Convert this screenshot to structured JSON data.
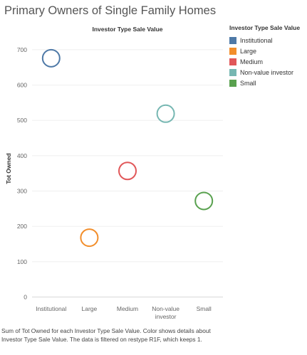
{
  "page_title": "Primary Owners of Single Family Homes",
  "caption": "Sum of Tot Owned for each Investor Type Sale Value.  Color shows details about Investor Type Sale Value. The data is filtered on restype R1F, which keeps 1.",
  "legend": {
    "title": "Investor Type Sale Value",
    "items": [
      {
        "label": "Institutional",
        "color": "#4e79a7"
      },
      {
        "label": "Large",
        "color": "#f28e2b"
      },
      {
        "label": "Medium",
        "color": "#e15759"
      },
      {
        "label": "Non-value investor",
        "color": "#76b7b2"
      },
      {
        "label": "Small",
        "color": "#59a14f"
      }
    ]
  },
  "chart_data": {
    "type": "scatter",
    "title": "Investor Type Sale Value",
    "xlabel": "",
    "ylabel": "Tot Owned",
    "categories": [
      "Institutional",
      "Large",
      "Medium",
      "Non-value investor",
      "Small"
    ],
    "category_tick_labels": [
      [
        "Institutional"
      ],
      [
        "Large"
      ],
      [
        "Medium"
      ],
      [
        "Non-value",
        "investor"
      ],
      [
        "Small"
      ]
    ],
    "values": [
      676,
      168,
      357,
      519,
      272
    ],
    "colors": [
      "#4e79a7",
      "#f28e2b",
      "#e15759",
      "#76b7b2",
      "#59a14f"
    ],
    "ylim": [
      -15,
      730
    ],
    "yticks": [
      0,
      100,
      200,
      300,
      400,
      500,
      600,
      700
    ],
    "grid": true,
    "legend_position": "right"
  }
}
